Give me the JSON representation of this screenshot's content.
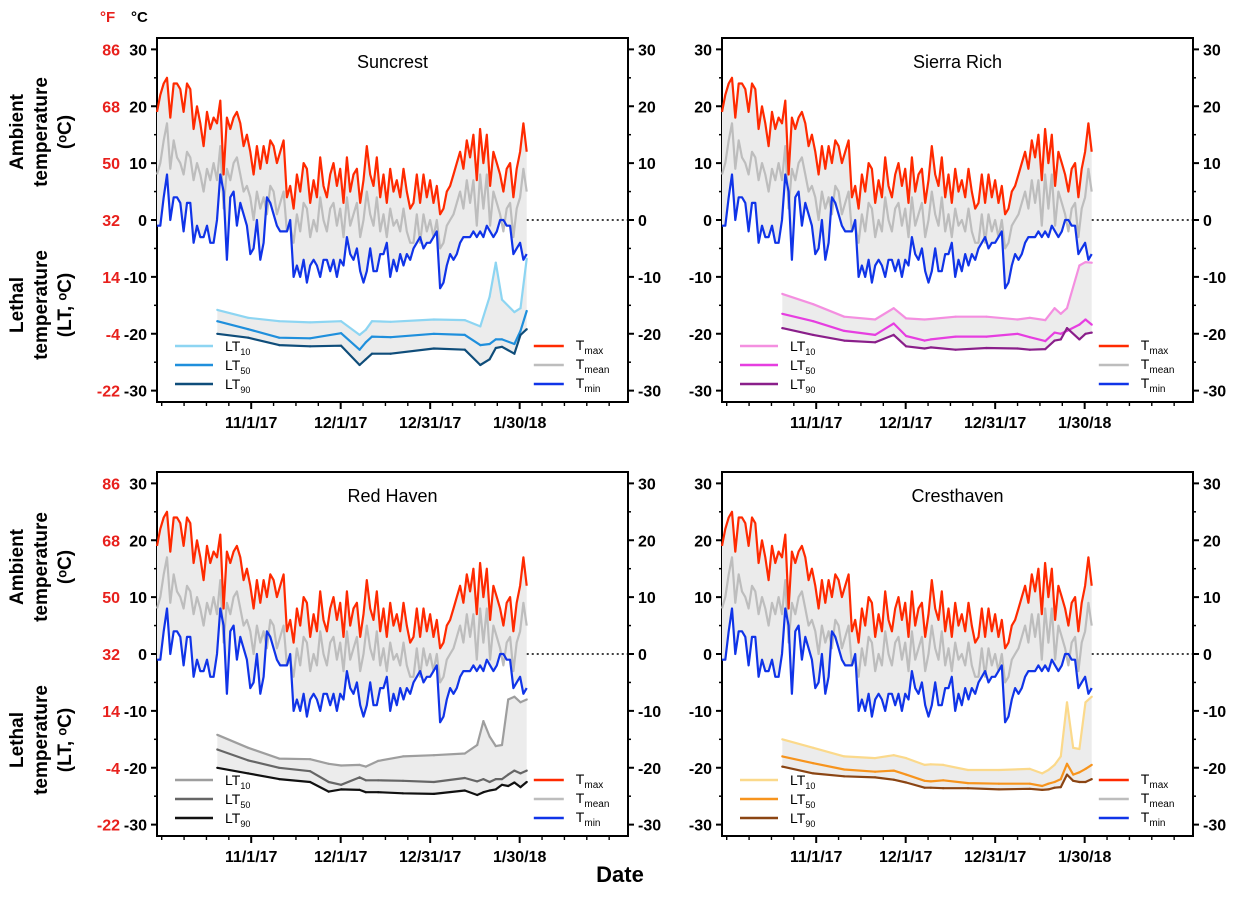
{
  "figure": {
    "unit_labels": {
      "f": "°F",
      "c": "°C"
    },
    "fahrenheit_ticks": [
      "86",
      "68",
      "50",
      "32",
      "14",
      "-4",
      "-22"
    ],
    "ylabel_ambient": [
      "Ambient",
      "temperature",
      "(ᵒC)"
    ],
    "ylabel_lethal": [
      "Lethal",
      "temperature",
      "(LT, ᵒC)"
    ],
    "xlabel": "Date"
  },
  "chart_data": [
    {
      "type": "line",
      "title": "Suncrest",
      "x_ticks": [
        "11/1/17",
        "12/1/17",
        "12/31/17",
        "1/30/18"
      ],
      "y_ticks": [
        "30",
        "20",
        "10",
        "0",
        "-10",
        "-20",
        "-30"
      ],
      "ylim": [
        -32,
        32
      ],
      "hardiness_legend": [
        {
          "base": "LT",
          "sub": "10",
          "color": "#8dd5f2"
        },
        {
          "base": "LT",
          "sub": "50",
          "color": "#1f8fdc"
        },
        {
          "base": "LT",
          "sub": "90",
          "color": "#0f4d7a"
        }
      ],
      "temp_legend": [
        {
          "base": "T",
          "sub": "max",
          "color": "#ff2a00"
        },
        {
          "base": "T",
          "sub": "mean",
          "color": "#bdbdbd"
        },
        {
          "base": "T",
          "sub": "min",
          "color": "#1034e8"
        }
      ],
      "series": [
        {
          "name": "LT10",
          "color": "#8dd5f2",
          "x": [
            0,
            10,
            20,
            30,
            40,
            46,
            48,
            50,
            56,
            70,
            80,
            85,
            88,
            90,
            92,
            96,
            98,
            100
          ],
          "values": [
            -15.8,
            -17.2,
            -17.8,
            -18,
            -17.8,
            -20.2,
            -19.3,
            -17.8,
            -17.9,
            -17.5,
            -17.6,
            -18.7,
            -13.5,
            -7.5,
            -14,
            -16.2,
            -15.5,
            -6.8
          ]
        },
        {
          "name": "LT50",
          "color": "#1f8fdc",
          "x": [
            0,
            10,
            20,
            30,
            40,
            46,
            48,
            50,
            56,
            70,
            80,
            85,
            88,
            90,
            92,
            96,
            98,
            100
          ],
          "values": [
            -17.8,
            -19.2,
            -20.7,
            -20.8,
            -19.9,
            -22.8,
            -21.5,
            -20.5,
            -20.6,
            -20,
            -20.2,
            -22,
            -21.8,
            -21,
            -21,
            -21.8,
            -19.5,
            -16
          ]
        },
        {
          "name": "LT90",
          "color": "#0f4d7a",
          "x": [
            0,
            10,
            20,
            30,
            40,
            46,
            48,
            50,
            56,
            70,
            80,
            85,
            88,
            90,
            92,
            96,
            98,
            100
          ],
          "values": [
            -20,
            -20.7,
            -22,
            -22.2,
            -22.1,
            -25.5,
            -24.5,
            -23.5,
            -23.5,
            -22.6,
            -22.8,
            -25.5,
            -24.5,
            -22.5,
            -22.3,
            -23.5,
            -20.2,
            -19.2
          ]
        }
      ]
    },
    {
      "type": "line",
      "title": "Sierra Rich",
      "x_ticks": [
        "11/1/17",
        "12/1/17",
        "12/31/17",
        "1/30/18"
      ],
      "y_ticks": [
        "30",
        "20",
        "10",
        "0",
        "-10",
        "-20",
        "-30"
      ],
      "ylim": [
        -32,
        32
      ],
      "hardiness_legend": [
        {
          "base": "LT",
          "sub": "10",
          "color": "#f48fe0"
        },
        {
          "base": "LT",
          "sub": "50",
          "color": "#e63ee0"
        },
        {
          "base": "LT",
          "sub": "90",
          "color": "#8a1f8a"
        }
      ],
      "temp_legend": [
        {
          "base": "T",
          "sub": "max",
          "color": "#ff2a00"
        },
        {
          "base": "T",
          "sub": "mean",
          "color": "#bdbdbd"
        },
        {
          "base": "T",
          "sub": "min",
          "color": "#1034e8"
        }
      ],
      "series": [
        {
          "name": "LT10",
          "color": "#f48fe0",
          "x": [
            0,
            10,
            20,
            30,
            36,
            40,
            46,
            48,
            56,
            66,
            76,
            80,
            85,
            88,
            90,
            92,
            96,
            98,
            100
          ],
          "values": [
            -13,
            -14.8,
            -17,
            -17.5,
            -15.5,
            -17.3,
            -17.5,
            -17.4,
            -17,
            -17,
            -17.5,
            -17.2,
            -17.6,
            -15.5,
            -16.5,
            -15.5,
            -8,
            -7.4,
            -7.5
          ]
        },
        {
          "name": "LT50",
          "color": "#e63ee0",
          "x": [
            0,
            10,
            20,
            30,
            36,
            40,
            46,
            48,
            56,
            66,
            76,
            80,
            85,
            88,
            90,
            92,
            96,
            98,
            100
          ],
          "values": [
            -16.5,
            -17.8,
            -19.5,
            -20.2,
            -18.2,
            -20.4,
            -21.2,
            -21,
            -20.5,
            -20.5,
            -20,
            -20.6,
            -21.3,
            -19.8,
            -20,
            -19.5,
            -18.4,
            -17.5,
            -18.4
          ]
        },
        {
          "name": "LT90",
          "color": "#8a1f8a",
          "x": [
            0,
            10,
            20,
            30,
            36,
            40,
            46,
            48,
            56,
            66,
            76,
            80,
            85,
            88,
            90,
            92,
            96,
            98,
            100
          ],
          "values": [
            -19,
            -20.2,
            -21.2,
            -21.5,
            -20.2,
            -22.2,
            -22.6,
            -22.4,
            -22.8,
            -22.5,
            -22.6,
            -22.8,
            -22.7,
            -21.2,
            -21,
            -19,
            -21,
            -20,
            -19.8
          ]
        }
      ]
    },
    {
      "type": "line",
      "title": "Red Haven",
      "x_ticks": [
        "11/1/17",
        "12/1/17",
        "12/31/17",
        "1/30/18"
      ],
      "y_ticks": [
        "30",
        "20",
        "10",
        "0",
        "-10",
        "-20",
        "-30"
      ],
      "ylim": [
        -32,
        32
      ],
      "hardiness_legend": [
        {
          "base": "LT",
          "sub": "10",
          "color": "#9e9e9e"
        },
        {
          "base": "LT",
          "sub": "50",
          "color": "#666666"
        },
        {
          "base": "LT",
          "sub": "90",
          "color": "#111111"
        }
      ],
      "temp_legend": [
        {
          "base": "T",
          "sub": "max",
          "color": "#ff2a00"
        },
        {
          "base": "T",
          "sub": "mean",
          "color": "#bdbdbd"
        },
        {
          "base": "T",
          "sub": "min",
          "color": "#1034e8"
        }
      ],
      "series": [
        {
          "name": "LT10",
          "color": "#9e9e9e",
          "x": [
            0,
            10,
            20,
            30,
            36,
            40,
            46,
            48,
            52,
            60,
            70,
            80,
            84,
            86,
            88,
            90,
            92,
            94,
            96,
            98,
            100
          ],
          "values": [
            -14.2,
            -16.5,
            -18.4,
            -18.5,
            -19.3,
            -19.6,
            -19.5,
            -19.8,
            -18.8,
            -18,
            -17.8,
            -17.5,
            -16,
            -11.8,
            -14.5,
            -16.2,
            -16,
            -8,
            -7.5,
            -8.5,
            -8
          ]
        },
        {
          "name": "LT50",
          "color": "#666666",
          "x": [
            0,
            10,
            20,
            30,
            36,
            40,
            46,
            48,
            52,
            60,
            70,
            80,
            84,
            86,
            88,
            90,
            92,
            94,
            96,
            98,
            100
          ],
          "values": [
            -16.8,
            -18.7,
            -20,
            -20.6,
            -22.5,
            -23,
            -21.7,
            -22.2,
            -22.2,
            -22.3,
            -22.5,
            -21.8,
            -22.4,
            -22,
            -22.5,
            -22,
            -22,
            -21.2,
            -20.5,
            -21,
            -20.5
          ]
        },
        {
          "name": "LT90",
          "color": "#111111",
          "x": [
            0,
            10,
            20,
            30,
            36,
            40,
            46,
            48,
            52,
            60,
            70,
            80,
            84,
            86,
            88,
            90,
            92,
            94,
            96,
            98,
            100
          ],
          "values": [
            -20,
            -21,
            -22,
            -22.5,
            -24.2,
            -23.8,
            -23.9,
            -24.3,
            -24.3,
            -24.5,
            -24.6,
            -24,
            -24.8,
            -24.3,
            -24,
            -23.8,
            -23,
            -23.2,
            -22.6,
            -23.4,
            -22.5
          ]
        }
      ]
    },
    {
      "type": "line",
      "title": "Cresthaven",
      "x_ticks": [
        "11/1/17",
        "12/1/17",
        "12/31/17",
        "1/30/18"
      ],
      "y_ticks": [
        "30",
        "20",
        "10",
        "0",
        "-10",
        "-20",
        "-30"
      ],
      "ylim": [
        -32,
        32
      ],
      "hardiness_legend": [
        {
          "base": "LT",
          "sub": "10",
          "color": "#fbd98b"
        },
        {
          "base": "LT",
          "sub": "50",
          "color": "#f7941d"
        },
        {
          "base": "LT",
          "sub": "90",
          "color": "#8b4513"
        }
      ],
      "temp_legend": [
        {
          "base": "T",
          "sub": "max",
          "color": "#ff2a00"
        },
        {
          "base": "T",
          "sub": "mean",
          "color": "#bdbdbd"
        },
        {
          "base": "T",
          "sub": "min",
          "color": "#1034e8"
        }
      ],
      "series": [
        {
          "name": "LT10",
          "color": "#fbd98b",
          "x": [
            0,
            10,
            20,
            30,
            36,
            40,
            46,
            48,
            52,
            60,
            70,
            80,
            84,
            86,
            88,
            90,
            92,
            94,
            96,
            98,
            100
          ],
          "values": [
            -15,
            -16.5,
            -18,
            -18.3,
            -17.8,
            -18.3,
            -19.5,
            -19.4,
            -19.5,
            -20.4,
            -20.4,
            -20.2,
            -21,
            -20.4,
            -19.5,
            -18,
            -8.5,
            -16.5,
            -16.7,
            -8.5,
            -7.5
          ]
        },
        {
          "name": "LT50",
          "color": "#f7941d",
          "x": [
            0,
            10,
            20,
            30,
            36,
            40,
            46,
            48,
            52,
            60,
            70,
            80,
            84,
            86,
            88,
            90,
            92,
            94,
            96,
            98,
            100
          ],
          "values": [
            -18,
            -19.2,
            -20.3,
            -20.7,
            -20.5,
            -21.2,
            -22.3,
            -22.4,
            -22.2,
            -22.7,
            -22.8,
            -22.8,
            -23.2,
            -22.8,
            -22.5,
            -22,
            -19.3,
            -21.2,
            -20.8,
            -20.2,
            -19.5
          ]
        },
        {
          "name": "LT90",
          "color": "#8b4513",
          "x": [
            0,
            10,
            20,
            30,
            36,
            40,
            46,
            48,
            52,
            60,
            70,
            80,
            84,
            86,
            88,
            90,
            92,
            94,
            96,
            98,
            100
          ],
          "values": [
            -19.8,
            -21,
            -21.5,
            -21.7,
            -22.1,
            -22.6,
            -23.5,
            -23.5,
            -23.6,
            -23.6,
            -23.8,
            -23.7,
            -23.9,
            -23.8,
            -23.5,
            -23.4,
            -21.2,
            -22.3,
            -22.5,
            -22.5,
            -22
          ]
        }
      ]
    }
  ]
}
